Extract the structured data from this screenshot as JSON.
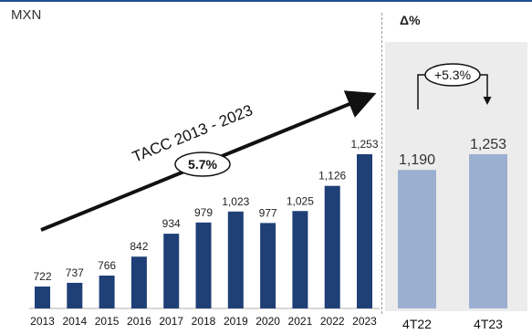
{
  "unit_label": "MXN",
  "delta_title": "Δ%",
  "chart_data": [
    {
      "type": "bar",
      "categories": [
        "2013",
        "2014",
        "2015",
        "2016",
        "2017",
        "2018",
        "2019",
        "2020",
        "2021",
        "2022",
        "2023"
      ],
      "values": [
        722,
        737,
        766,
        842,
        934,
        979,
        1023,
        977,
        1025,
        1126,
        1253
      ],
      "value_labels": [
        "722",
        "737",
        "766",
        "842",
        "934",
        "979",
        "1,023",
        "977",
        "1,025",
        "1,126",
        "1,253"
      ],
      "ylim": [
        600,
        1300
      ],
      "bar_color": "#1f3f77",
      "annotation": {
        "trend_label": "TACC 2013 - 2023",
        "cagr": "5.7%"
      }
    },
    {
      "type": "bar",
      "categories": [
        "4T22",
        "4T23"
      ],
      "values": [
        1190,
        1253
      ],
      "value_labels": [
        "1,190",
        "1,253"
      ],
      "ylim": [
        600,
        1300
      ],
      "bar_color": "#9bb0d1",
      "annotation": {
        "change": "+5.3%"
      }
    }
  ]
}
